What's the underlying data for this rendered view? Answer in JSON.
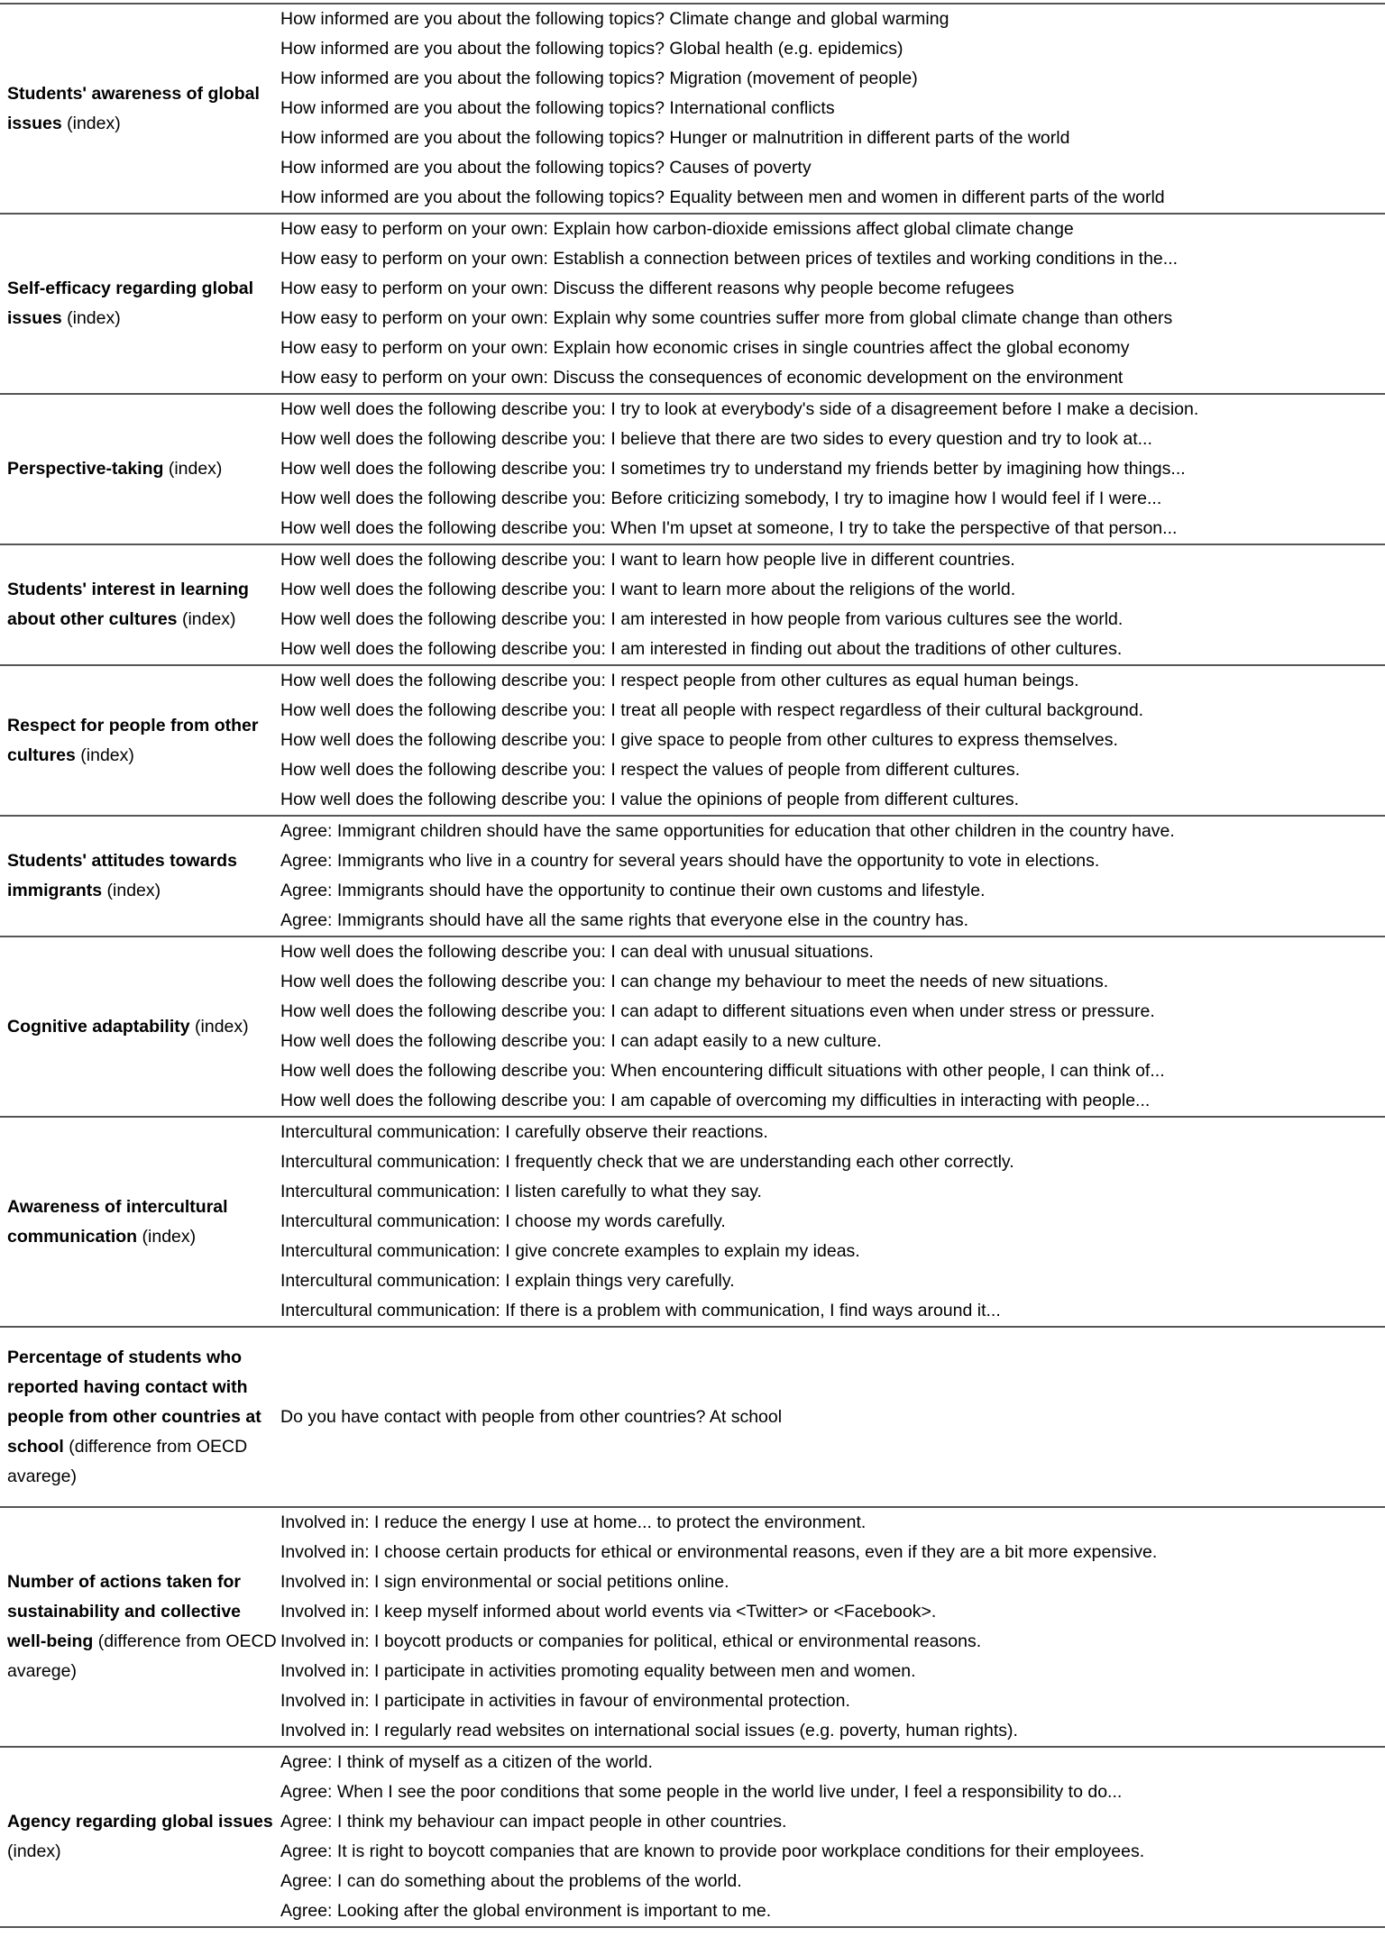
{
  "rows": [
    {
      "label_bold": "Students' awareness of global issues",
      "label_suffix": " (index)",
      "items": [
        "How informed are you about the following topics? Climate change and global warming",
        "How informed are you about the following topics? Global health (e.g. epidemics)",
        "How informed are you about the following topics? Migration (movement of people)",
        "How informed are you about the following topics? International conflicts",
        "How informed are you about the following topics? Hunger or malnutrition in different parts of the world",
        "How informed are you about the following topics? Causes of poverty",
        "How informed are you about the following topics? Equality between men and women in different parts of the world"
      ]
    },
    {
      "label_bold": "Self-efficacy regarding global issues",
      "label_suffix": " (index)",
      "items": [
        "How easy to perform on your own: Explain how carbon-dioxide emissions affect global climate change",
        "How easy to perform on your own: Establish a connection between prices of textiles and working conditions in the...",
        "How easy to perform on your own: Discuss the different reasons why people become refugees",
        "How easy to perform on your own: Explain why some countries suffer more from global climate change than others",
        "How easy to perform on your own: Explain how economic crises in single countries affect the global economy",
        "How easy to perform on your own: Discuss the consequences of economic development on the environment"
      ]
    },
    {
      "label_bold": "Perspective-taking",
      "label_suffix": " (index)",
      "items": [
        "How well does the following describe you: I try to look at everybody's side of a disagreement before I make a decision.",
        "How well does the following describe you: I believe that there are two sides to every question and try to look at...",
        "How well does the following describe you: I sometimes try to understand my friends better by imagining how things...",
        "How well does the following describe you: Before criticizing somebody, I try to imagine how I would feel if I were...",
        "How well does the following describe you: When I'm upset at someone, I try to take the perspective of that person..."
      ]
    },
    {
      "label_bold": "Students' interest in learning about other cultures",
      "label_suffix": " (index)",
      "items": [
        "How well does the following describe you: I want to learn how people live in different countries.",
        "How well does the following describe you: I want to learn more about the religions of the world.",
        "How well does the following describe you: I am interested in how people from various cultures see the world.",
        "How well does the following describe you: I am interested in finding out about the traditions of other cultures."
      ]
    },
    {
      "label_bold": "Respect for people from other cultures",
      "label_suffix": " (index)",
      "items": [
        "How well does the following describe you: I respect people from other cultures as equal human beings.",
        "How well does the following describe you: I treat all people with respect regardless of their cultural background.",
        "How well does the following describe you: I give space to people from other cultures to express themselves.",
        "How well does the following describe you: I respect the values of people from different cultures.",
        "How well does the following describe you: I value the opinions of people from different cultures."
      ]
    },
    {
      "label_bold": "Students' attitudes towards immigrants",
      "label_suffix": " (index)",
      "items": [
        "Agree: Immigrant children should have the same opportunities for education that other children in the country have.",
        "Agree: Immigrants who live in a country for several years should have the opportunity to vote in elections.",
        "Agree: Immigrants should have the opportunity to continue their own customs and lifestyle.",
        "Agree: Immigrants should have all the same rights that everyone else in the country has."
      ]
    },
    {
      "label_bold": "Cognitive adaptability",
      "label_suffix": " (index)",
      "items": [
        "How well does the following describe you: I can deal with unusual situations.",
        "How well does the following describe you: I can change my behaviour to meet the needs of new situations.",
        "How well does the following describe you: I can adapt to different situations even when under stress or pressure.",
        "How well does the following describe you: I can adapt easily to a new culture.",
        "How well does the following describe you: When encountering difficult situations with other people, I can think of...",
        "How well does the following describe you: I am capable of overcoming my difficulties in interacting with people..."
      ]
    },
    {
      "label_bold": "Awareness of intercultural communication",
      "label_suffix": " (index)",
      "items": [
        "Intercultural communication: I carefully observe their reactions.",
        "Intercultural communication: I frequently check that we are understanding each other correctly.",
        "Intercultural communication: I listen carefully to what they say.",
        "Intercultural communication: I choose my words carefully.",
        "Intercultural communication: I give concrete examples to explain my ideas.",
        "Intercultural communication: I explain things very carefully.",
        "Intercultural communication: If there is a problem with communication, I find ways around it..."
      ]
    },
    {
      "label_bold": "Percentage of students who reported having contact with people from other countries at school",
      "label_suffix": " (difference from OECD avarege)",
      "single": true,
      "items": [
        "Do you have contact with people from other countries? At school"
      ]
    },
    {
      "label_bold": "Number of actions taken for sustainability and collective well-being",
      "label_suffix": " (difference from OECD avarege)",
      "items": [
        "Involved in: I reduce the energy I use at home... to protect the environment.",
        "Involved in: I choose certain products for ethical or environmental reasons, even if they are a bit more expensive.",
        "Involved in: I sign environmental or social petitions online.",
        "Involved in: I keep myself informed about world events via <Twitter> or <Facebook>.",
        "Involved in: I boycott products or companies for political, ethical or environmental reasons.",
        "Involved in: I participate in activities promoting equality between men and women.",
        "Involved in: I participate in activities in favour of environmental protection.",
        "Involved in: I regularly read websites on international social issues (e.g. poverty, human rights)."
      ]
    },
    {
      "label_bold": "Agency regarding global issues",
      "label_suffix": " (index)",
      "items": [
        "Agree: I think of myself as a citizen of the world.",
        "Agree: When I see the poor conditions that some people in the world live under, I feel a responsibility to do...",
        "Agree: I think my behaviour can impact people in other countries.",
        "Agree: It is right to boycott companies that are known to provide poor workplace conditions for their employees.",
        "Agree: I can do something about the problems of the world.",
        "Agree: Looking after the global environment is important to me."
      ]
    }
  ]
}
